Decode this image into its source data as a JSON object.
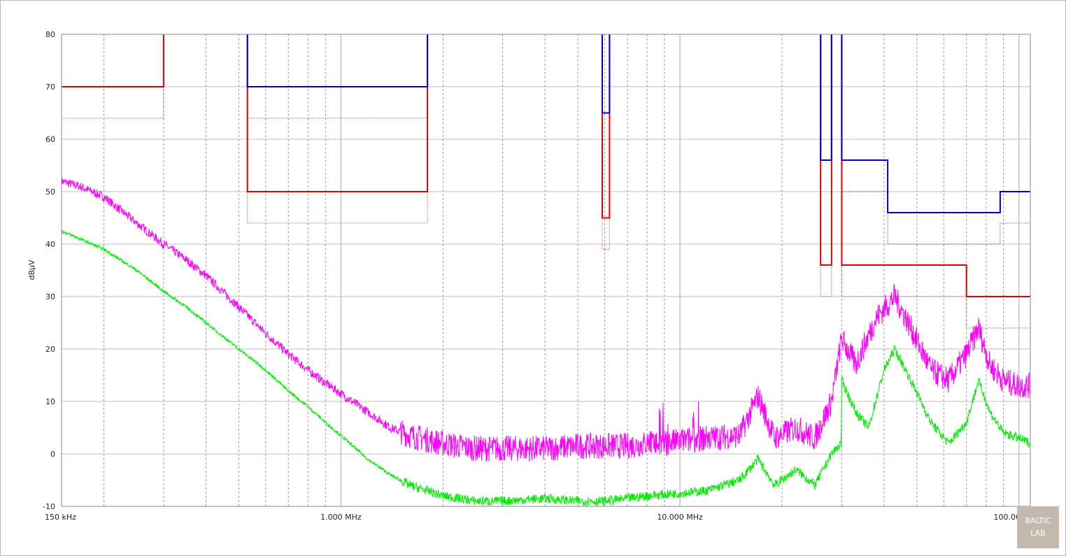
{
  "chart_data": {
    "type": "line",
    "title": "",
    "xlabel": "",
    "ylabel": "dBµV",
    "x_scale": "log",
    "xlim_mhz": [
      0.15,
      108
    ],
    "ylim": [
      -10,
      80
    ],
    "grid": true,
    "y_ticks": [
      -10,
      0,
      10,
      20,
      30,
      40,
      50,
      60,
      70,
      80
    ],
    "x_tick_labels": [
      {
        "mhz": 0.15,
        "label": "150 kHz"
      },
      {
        "mhz": 1,
        "label": "1.000 MHz"
      },
      {
        "mhz": 10,
        "label": "10.000 MHz"
      },
      {
        "mhz": 100,
        "label": "100.000 MHz"
      }
    ],
    "limit_lines": [
      {
        "color": "#e00000",
        "style": "solid",
        "points": [
          [
            0.15,
            70
          ],
          [
            0.3,
            70
          ],
          [
            0.3,
            80
          ],
          [
            null,
            null
          ],
          [
            0.53,
            80
          ],
          [
            0.53,
            50
          ],
          [
            1.8,
            50
          ],
          [
            1.8,
            80
          ],
          [
            null,
            null
          ],
          [
            5.9,
            80
          ],
          [
            5.9,
            45
          ],
          [
            6.2,
            45
          ],
          [
            6.2,
            80
          ],
          [
            null,
            null
          ],
          [
            26,
            80
          ],
          [
            26,
            36
          ],
          [
            28,
            36
          ],
          [
            28,
            80
          ],
          [
            null,
            null
          ],
          [
            30,
            80
          ],
          [
            30,
            36
          ],
          [
            70,
            36
          ],
          [
            70,
            30
          ],
          [
            108,
            30
          ]
        ]
      },
      {
        "color": "#e00000",
        "style": "dotted",
        "points": [
          [
            0.15,
            64
          ],
          [
            0.3,
            64
          ],
          [
            0.3,
            80
          ],
          [
            null,
            null
          ],
          [
            0.53,
            80
          ],
          [
            0.53,
            44
          ],
          [
            1.8,
            44
          ],
          [
            1.8,
            80
          ],
          [
            null,
            null
          ],
          [
            5.9,
            80
          ],
          [
            5.9,
            39
          ],
          [
            6.2,
            39
          ],
          [
            6.2,
            80
          ],
          [
            null,
            null
          ],
          [
            26,
            80
          ],
          [
            26,
            30
          ],
          [
            28,
            30
          ],
          [
            28,
            80
          ],
          [
            null,
            null
          ],
          [
            30,
            80
          ],
          [
            30,
            30
          ],
          [
            70,
            30
          ],
          [
            70,
            24
          ],
          [
            108,
            24
          ]
        ]
      },
      {
        "color": "#0000cc",
        "style": "solid",
        "points": [
          [
            0.53,
            80
          ],
          [
            0.53,
            70
          ],
          [
            1.8,
            70
          ],
          [
            1.8,
            80
          ],
          [
            null,
            null
          ],
          [
            5.9,
            80
          ],
          [
            5.9,
            65
          ],
          [
            6.2,
            65
          ],
          [
            6.2,
            80
          ],
          [
            null,
            null
          ],
          [
            26,
            80
          ],
          [
            26,
            56
          ],
          [
            28,
            56
          ],
          [
            28,
            80
          ],
          [
            null,
            null
          ],
          [
            30,
            80
          ],
          [
            30,
            56
          ],
          [
            41,
            56
          ],
          [
            41,
            46
          ],
          [
            88,
            46
          ],
          [
            88,
            50
          ],
          [
            108,
            50
          ]
        ]
      },
      {
        "color": "#0000cc",
        "style": "dotted",
        "points": [
          [
            0.53,
            64
          ],
          [
            1.8,
            64
          ],
          [
            null,
            null
          ],
          [
            30,
            50
          ],
          [
            41,
            50
          ],
          [
            41,
            40
          ],
          [
            88,
            40
          ],
          [
            88,
            44
          ],
          [
            108,
            44
          ]
        ]
      }
    ],
    "series": [
      {
        "color": "#ff00ff",
        "points": [
          [
            0.15,
            52
          ],
          [
            0.17,
            51
          ],
          [
            0.2,
            49
          ],
          [
            0.25,
            44
          ],
          [
            0.3,
            40
          ],
          [
            0.35,
            37
          ],
          [
            0.4,
            34
          ],
          [
            0.5,
            28
          ],
          [
            0.6,
            23
          ],
          [
            0.7,
            19
          ],
          [
            0.8,
            16
          ],
          [
            0.9,
            13.5
          ],
          [
            1,
            11.5
          ],
          [
            1.2,
            8
          ],
          [
            1.4,
            5
          ],
          [
            1.6,
            3.5
          ],
          [
            2,
            2
          ],
          [
            2.5,
            1
          ],
          [
            3,
            1
          ],
          [
            4,
            1
          ],
          [
            5,
            1.5
          ],
          [
            6,
            1.5
          ],
          [
            7,
            1.5
          ],
          [
            8,
            2
          ],
          [
            9,
            2
          ],
          [
            10,
            2.5
          ],
          [
            12,
            3
          ],
          [
            15,
            3.5
          ],
          [
            17,
            11
          ],
          [
            19,
            3
          ],
          [
            22,
            5
          ],
          [
            25,
            3
          ],
          [
            28,
            10
          ],
          [
            30,
            22
          ],
          [
            33,
            17
          ],
          [
            38,
            26
          ],
          [
            43,
            30
          ],
          [
            48,
            24
          ],
          [
            55,
            16
          ],
          [
            62,
            14
          ],
          [
            70,
            19
          ],
          [
            76,
            24
          ],
          [
            82,
            17
          ],
          [
            90,
            14
          ],
          [
            100,
            13
          ],
          [
            108,
            13
          ]
        ],
        "noise": 5
      },
      {
        "color": "#00ee00",
        "points": [
          [
            0.15,
            42.5
          ],
          [
            0.17,
            41
          ],
          [
            0.2,
            39
          ],
          [
            0.25,
            35
          ],
          [
            0.3,
            31
          ],
          [
            0.35,
            28
          ],
          [
            0.4,
            25
          ],
          [
            0.5,
            20
          ],
          [
            0.6,
            16
          ],
          [
            0.7,
            12
          ],
          [
            0.8,
            9
          ],
          [
            0.9,
            6
          ],
          [
            1,
            3.5
          ],
          [
            1.2,
            -1
          ],
          [
            1.4,
            -4
          ],
          [
            1.6,
            -6
          ],
          [
            2,
            -8
          ],
          [
            2.5,
            -9
          ],
          [
            3,
            -9
          ],
          [
            4,
            -8.5
          ],
          [
            5,
            -9
          ],
          [
            6,
            -9
          ],
          [
            7,
            -8.5
          ],
          [
            8,
            -8
          ],
          [
            10,
            -7.5
          ],
          [
            12,
            -7
          ],
          [
            15,
            -5
          ],
          [
            17,
            -1
          ],
          [
            19,
            -6
          ],
          [
            22,
            -3
          ],
          [
            25,
            -6
          ],
          [
            28,
            0
          ],
          [
            29.9,
            2
          ],
          [
            30,
            14
          ],
          [
            33,
            8
          ],
          [
            36,
            5
          ],
          [
            40,
            16
          ],
          [
            43,
            20
          ],
          [
            48,
            14
          ],
          [
            55,
            6
          ],
          [
            62,
            2
          ],
          [
            70,
            6
          ],
          [
            76,
            14
          ],
          [
            82,
            8
          ],
          [
            90,
            4
          ],
          [
            100,
            3
          ],
          [
            108,
            2
          ]
        ],
        "noise": 1.8
      }
    ]
  },
  "logo": {
    "line1": "BALTIC",
    "line2": "LAB"
  }
}
